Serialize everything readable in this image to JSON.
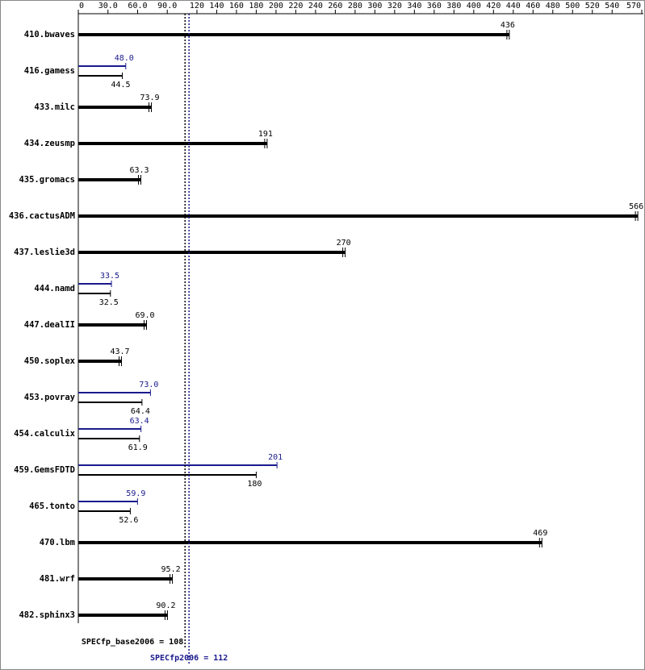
{
  "chart_data": {
    "type": "bar",
    "orientation": "horizontal",
    "categories": [
      "410.bwaves",
      "416.gamess",
      "433.milc",
      "434.zeusmp",
      "435.gromacs",
      "436.cactusADM",
      "437.leslie3d",
      "444.namd",
      "447.dealII",
      "450.soplex",
      "453.povray",
      "454.calculix",
      "459.GemsFDTD",
      "465.tonto",
      "470.lbm",
      "481.wrf",
      "482.sphinx3"
    ],
    "series": [
      {
        "color": "#000000",
        "values": [
          436,
          44.5,
          73.9,
          191,
          63.3,
          566,
          270,
          32.5,
          69.0,
          43.7,
          64.4,
          61.9,
          180,
          52.6,
          469,
          95.2,
          90.2
        ],
        "value_labels": [
          "436",
          "44.5",
          "73.9",
          "191",
          "63.3",
          "566",
          "270",
          "32.5",
          "69.0",
          "43.7",
          "64.4",
          "61.9",
          "180",
          "52.6",
          "469",
          "95.2",
          "90.2"
        ]
      },
      {
        "color": "#1a1a8c",
        "values": [
          null,
          48.0,
          null,
          null,
          null,
          null,
          null,
          33.5,
          null,
          null,
          73.0,
          63.4,
          201,
          59.9,
          null,
          null,
          null
        ],
        "value_labels": [
          null,
          "48.0",
          null,
          null,
          null,
          null,
          null,
          "33.5",
          null,
          null,
          "73.0",
          "63.4",
          "201",
          "59.9",
          null,
          null,
          null
        ]
      }
    ],
    "xlim": [
      0,
      570
    ],
    "xticks": [
      0,
      {
        "value": 30,
        "label": "30.0"
      },
      {
        "value": 60,
        "label": "60.0"
      },
      {
        "value": 90,
        "label": "90.0"
      },
      120,
      140,
      160,
      180,
      200,
      220,
      240,
      260,
      280,
      300,
      320,
      340,
      360,
      380,
      400,
      420,
      440,
      460,
      480,
      500,
      520,
      540,
      570
    ],
    "reference_lines": [
      {
        "label": "SPECfp_base2006 = 108",
        "value": 108,
        "color": "#000000"
      },
      {
        "label": "SPECfp2006 = 112",
        "value": 112,
        "color": "#1a1a8c"
      }
    ]
  }
}
